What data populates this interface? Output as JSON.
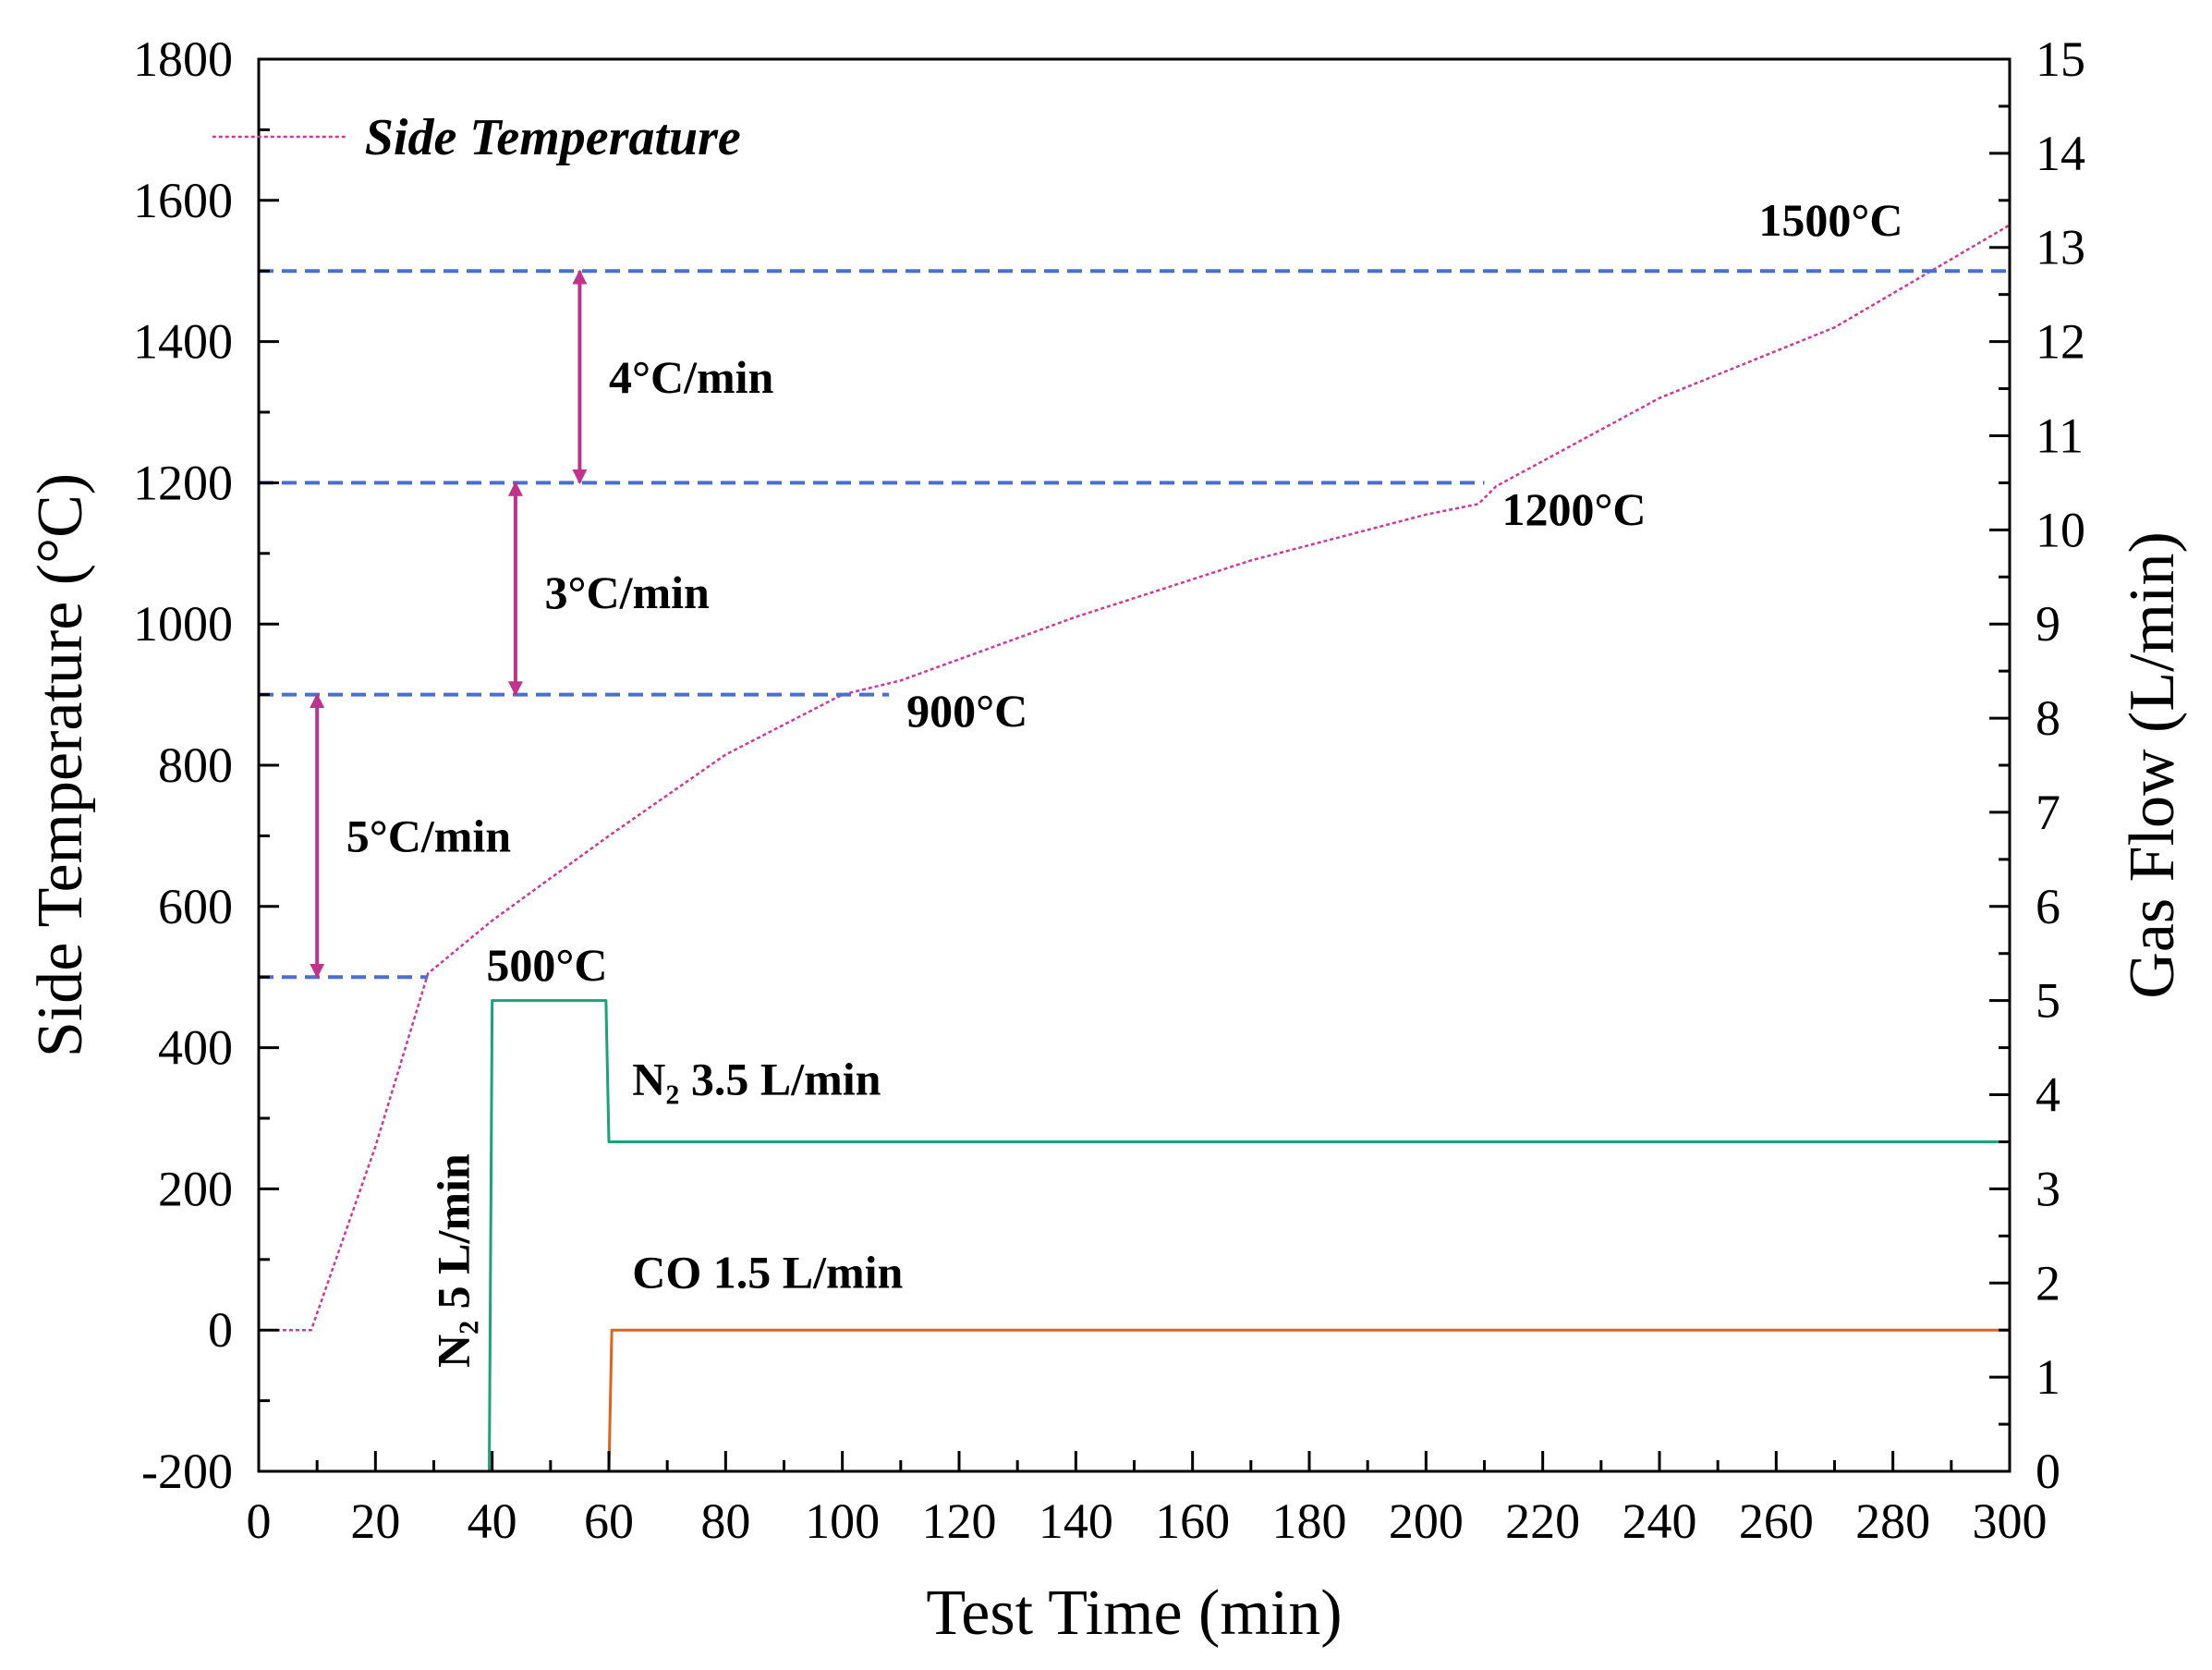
{
  "chart_data": {
    "type": "line",
    "title": "",
    "xlabel": "Test Time (min)",
    "ylabel": "Side Temperature (°C)",
    "y2label": "Gas Flow (L/min)",
    "xlim": [
      0,
      300
    ],
    "ylim": [
      -200,
      1800
    ],
    "y2lim": [
      0,
      15
    ],
    "x_ticks": [
      0,
      20,
      40,
      60,
      80,
      100,
      120,
      140,
      160,
      180,
      200,
      220,
      240,
      260,
      280,
      300
    ],
    "y_ticks": [
      -200,
      0,
      200,
      400,
      600,
      800,
      1000,
      1200,
      1400,
      1600,
      1800
    ],
    "y2_ticks": [
      0,
      1,
      2,
      3,
      4,
      5,
      6,
      7,
      8,
      9,
      10,
      11,
      12,
      13,
      14,
      15
    ],
    "grid": false,
    "legend": {
      "position": "top-left",
      "entries": [
        "Side Temperature"
      ]
    },
    "series": [
      {
        "name": "Side Temperature",
        "axis": "left",
        "color": "#d1379b",
        "style": "dotted",
        "x": [
          3,
          9,
          20,
          29,
          40,
          60,
          80,
          100,
          110,
          140,
          170,
          200,
          209,
          212,
          240,
          270,
          300
        ],
        "y": [
          0,
          0,
          260,
          505,
          580,
          700,
          815,
          900,
          920,
          1010,
          1090,
          1155,
          1170,
          1195,
          1320,
          1420,
          1565
        ]
      },
      {
        "name": "N2",
        "axis": "right",
        "color": "#1aa37a",
        "style": "solid",
        "x": [
          0,
          39.5,
          40,
          59.5,
          60,
          300
        ],
        "y": [
          0,
          0,
          5,
          5,
          3.5,
          3.5
        ]
      },
      {
        "name": "CO",
        "axis": "right",
        "color": "#e0631b",
        "style": "solid",
        "x": [
          0,
          60,
          60.5,
          300
        ],
        "y": [
          0,
          0,
          1.5,
          1.5
        ]
      }
    ],
    "reference_lines": [
      {
        "y": 500,
        "x_end": 29,
        "color": "#4a6fd4"
      },
      {
        "y": 900,
        "x_end": 108,
        "color": "#4a6fd4"
      },
      {
        "y": 1200,
        "x_end": 210,
        "color": "#4a6fd4"
      },
      {
        "y": 1500,
        "x_end": 300,
        "color": "#4a6fd4"
      }
    ],
    "rate_arrows": [
      {
        "x": 10,
        "y_from": 500,
        "y_to": 900,
        "label": "5°C/min",
        "label_x": 15,
        "label_y": 700
      },
      {
        "x": 44,
        "y_from": 900,
        "y_to": 1200,
        "label": "3°C/min",
        "label_x": 49,
        "label_y": 1045
      },
      {
        "x": 55,
        "y_from": 1200,
        "y_to": 1500,
        "label": "4°C/min",
        "label_x": 60,
        "label_y": 1350
      }
    ],
    "annotations": [
      {
        "text": "500°C",
        "x": 39,
        "y": 495
      },
      {
        "text": "900°C",
        "x": 111,
        "y": 855
      },
      {
        "text": "1200°C",
        "x": 213,
        "y": 1140
      },
      {
        "text": "1500°C",
        "x": 257,
        "y": 1550
      },
      {
        "text": "N₂ 3.5 L/min",
        "x": 64,
        "y2": 4.0
      },
      {
        "text": "CO 1.5 L/min",
        "x": 64,
        "y2": 1.95
      },
      {
        "text": "N₂ 5 L/min",
        "x": 36,
        "y2": 1.1,
        "rotated": true
      }
    ]
  }
}
